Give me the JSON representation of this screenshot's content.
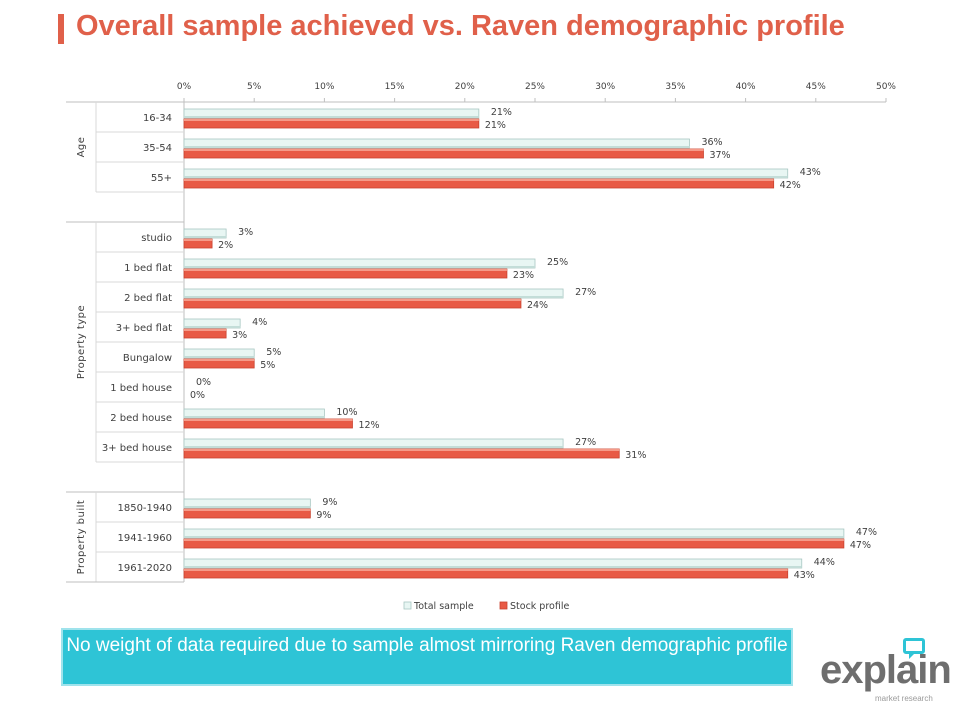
{
  "page": {
    "title": "Overall sample achieved vs. Raven demographic profile"
  },
  "note": {
    "text": "No weight of data required due to sample almost mirroring Raven demographic profile"
  },
  "logo": {
    "word": "explain",
    "sub": "market research"
  },
  "colors": {
    "accent": "#e0604a",
    "total_sample": "#e8f6f3",
    "stock_profile": "#e85a45",
    "note_bg": "#2ec4d6"
  },
  "chart_data": {
    "type": "bar",
    "orientation": "horizontal",
    "title": "",
    "xlim": [
      0,
      50
    ],
    "x_ticks": [
      "0%",
      "5%",
      "10%",
      "15%",
      "20%",
      "25%",
      "30%",
      "35%",
      "40%",
      "45%",
      "50%"
    ],
    "legend_position": "bottom",
    "groups": [
      {
        "name": "Age",
        "categories": [
          "16-34",
          "35-54",
          "55+"
        ]
      },
      {
        "name": "Property type",
        "categories": [
          "studio",
          "1 bed flat",
          "2 bed flat",
          "3+ bed flat",
          "Bungalow",
          "1 bed house",
          "2 bed house",
          "3+ bed house"
        ]
      },
      {
        "name": "Property built",
        "categories": [
          "1850-1940",
          "1941-1960",
          "1961-2020"
        ]
      }
    ],
    "series": [
      {
        "name": "Total sample",
        "values": [
          21,
          36,
          43,
          3,
          25,
          27,
          4,
          5,
          0,
          10,
          27,
          9,
          47,
          44
        ],
        "labels": [
          "21%",
          "36%",
          "43%",
          "3%",
          "25%",
          "27%",
          "4%",
          "5%",
          "0%",
          "10%",
          "27%",
          "9%",
          "47%",
          "44%"
        ]
      },
      {
        "name": "Stock profile",
        "values": [
          21,
          37,
          42,
          2,
          23,
          24,
          3,
          5,
          0,
          12,
          31,
          9,
          47,
          43
        ],
        "labels": [
          "21%",
          "37%",
          "42%",
          "2%",
          "23%",
          "24%",
          "3%",
          "5%",
          "0%",
          "12%",
          "31%",
          "9%",
          "47%",
          "43%"
        ]
      }
    ]
  }
}
